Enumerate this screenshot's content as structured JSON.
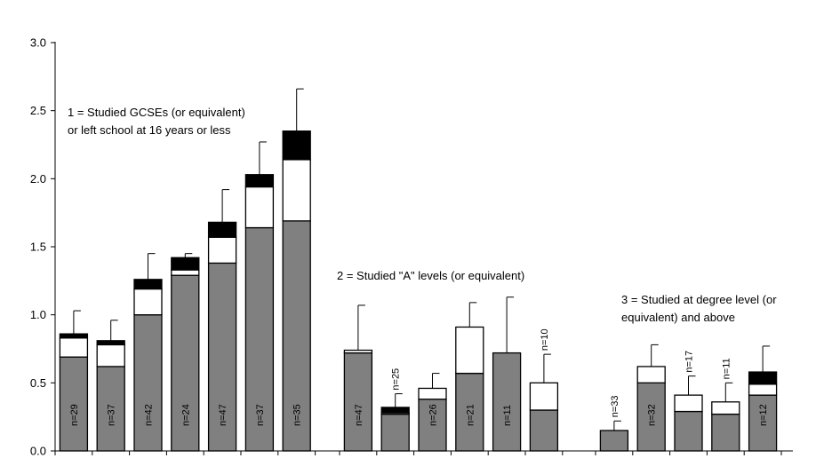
{
  "chart_data": {
    "type": "bar",
    "stacked": true,
    "ylim": [
      0,
      3.0
    ],
    "yticks": [
      "0.0",
      "0.5",
      "1.0",
      "1.5",
      "2.0",
      "2.5",
      "3.0"
    ],
    "grid": false,
    "legend": "none",
    "colors": {
      "segment1": "#808080",
      "segment2": "#ffffff",
      "segment3": "#000000",
      "outline": "#000000"
    },
    "groups": [
      {
        "annotation_lines": [
          "1 = Studied GCSEs (or equivalent)",
          "or left school at 16 years or less"
        ],
        "bars": [
          {
            "label": "n=29",
            "segments": [
              0.69,
              0.14,
              0.03
            ],
            "error_top": 1.03
          },
          {
            "label": "n=37",
            "segments": [
              0.62,
              0.16,
              0.03
            ],
            "error_top": 0.96
          },
          {
            "label": "n=42",
            "segments": [
              1.0,
              0.19,
              0.07
            ],
            "error_top": 1.45
          },
          {
            "label": "n=24",
            "segments": [
              1.29,
              0.04,
              0.09
            ],
            "error_top": 1.45
          },
          {
            "label": "n=47",
            "segments": [
              1.38,
              0.19,
              0.11
            ],
            "error_top": 1.92
          },
          {
            "label": "n=37",
            "segments": [
              1.64,
              0.3,
              0.09
            ],
            "error_top": 2.27
          },
          {
            "label": "n=35",
            "segments": [
              1.69,
              0.45,
              0.21
            ],
            "error_top": 2.66
          }
        ]
      },
      {
        "annotation_lines": [
          "2 = Studied  \"A\" levels (or equivalent)"
        ],
        "bars": [
          {
            "label": "n=47",
            "segments": [
              0.72,
              0.02,
              0.0
            ],
            "error_top": 1.07
          },
          {
            "label": "n=25",
            "segments": [
              0.27,
              0.01,
              0.04
            ],
            "error_top": 0.42
          },
          {
            "label": "n=26",
            "segments": [
              0.38,
              0.08,
              0.0
            ],
            "error_top": 0.57
          },
          {
            "label": "n=21",
            "segments": [
              0.57,
              0.34,
              0.0
            ],
            "error_top": 1.09
          },
          {
            "label": "n=11",
            "segments": [
              0.72,
              0.0,
              0.0
            ],
            "error_top": 1.13
          },
          {
            "label": "n=10",
            "segments": [
              0.3,
              0.2,
              0.0
            ],
            "error_top": 0.71
          }
        ]
      },
      {
        "annotation_lines": [
          "3 = Studied at  degree level (or",
          "equivalent) and above"
        ],
        "bars": [
          {
            "label": "n=33",
            "segments": [
              0.15,
              0.0,
              0.0
            ],
            "error_top": 0.22
          },
          {
            "label": "n=32",
            "segments": [
              0.5,
              0.12,
              0.0
            ],
            "error_top": 0.78
          },
          {
            "label": "n=17",
            "segments": [
              0.29,
              0.12,
              0.0
            ],
            "error_top": 0.55
          },
          {
            "label": "n=11",
            "segments": [
              0.27,
              0.09,
              0.0
            ],
            "error_top": 0.5
          },
          {
            "label": "n=12",
            "segments": [
              0.41,
              0.08,
              0.09
            ],
            "error_top": 0.77
          }
        ]
      }
    ]
  }
}
